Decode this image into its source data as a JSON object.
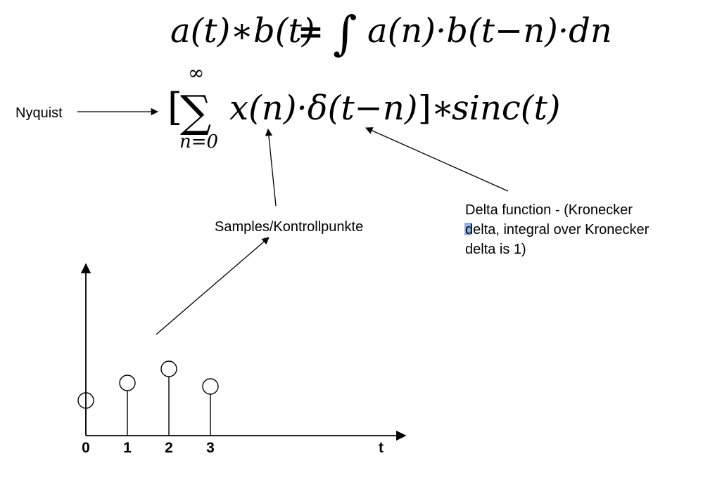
{
  "formula_convolution": {
    "lhs": "a(t)∗b(t)",
    "equals": "=",
    "integral": "∫",
    "rhs": "a(n)·b(t−n)·dn"
  },
  "formula_sampling": {
    "bracket_open": "[",
    "sum_symbol": "∑",
    "upper_limit": "∞",
    "lower_limit": "n=0",
    "body": "x(n)·δ(t−n)",
    "bracket_close": "]∗",
    "kernel": "sinc(t)"
  },
  "labels": {
    "nyquist": "Nyquist",
    "samples": "Samples/Kontrollpunkte",
    "delta_line1": "Delta function - (Kronecker",
    "delta_line2": "delta, integral over Kronecker",
    "delta_line3": "delta is 1)"
  },
  "stem_plot": {
    "x_axis_label": "t",
    "ticks": [
      "0",
      "1",
      "2",
      "3"
    ],
    "sample_heights": [
      0.2,
      0.3,
      0.38,
      0.28
    ]
  }
}
